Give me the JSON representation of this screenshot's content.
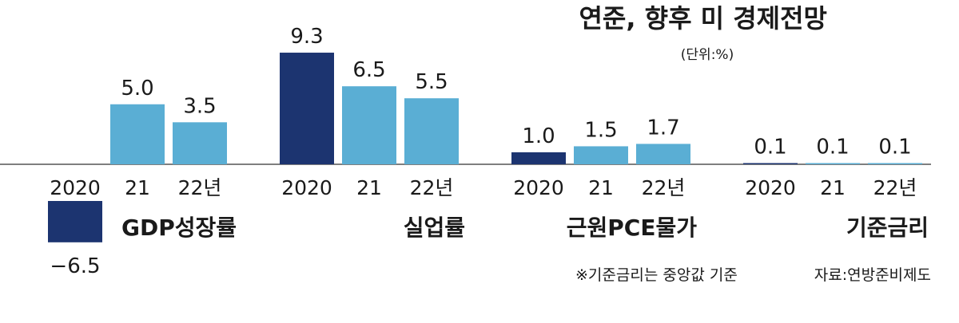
{
  "chart_data": {
    "type": "bar",
    "title": "연준, 향후 미 경제전망",
    "unit": "(단위:%)",
    "categories": [
      "2020",
      "21",
      "22년"
    ],
    "groups": [
      {
        "name": "GDP성장률",
        "values": [
          -6.5,
          5.0,
          3.5
        ],
        "labels": [
          "−6.5",
          "5.0",
          "3.5"
        ]
      },
      {
        "name": "실업률",
        "values": [
          9.3,
          6.5,
          5.5
        ],
        "labels": [
          "9.3",
          "6.5",
          "5.5"
        ]
      },
      {
        "name": "근원PCE물가",
        "values": [
          1.0,
          1.5,
          1.7
        ],
        "labels": [
          "1.0",
          "1.5",
          "1.7"
        ]
      },
      {
        "name": "기준금리",
        "values": [
          0.1,
          0.1,
          0.1
        ],
        "labels": [
          "0.1",
          "0.1",
          "0.1"
        ]
      }
    ],
    "colors": {
      "2020": "#1c3470",
      "projection": "#5aaed4"
    },
    "note": "※기준금리는 중앙값 기준",
    "source": "자료:연방준비제도"
  }
}
